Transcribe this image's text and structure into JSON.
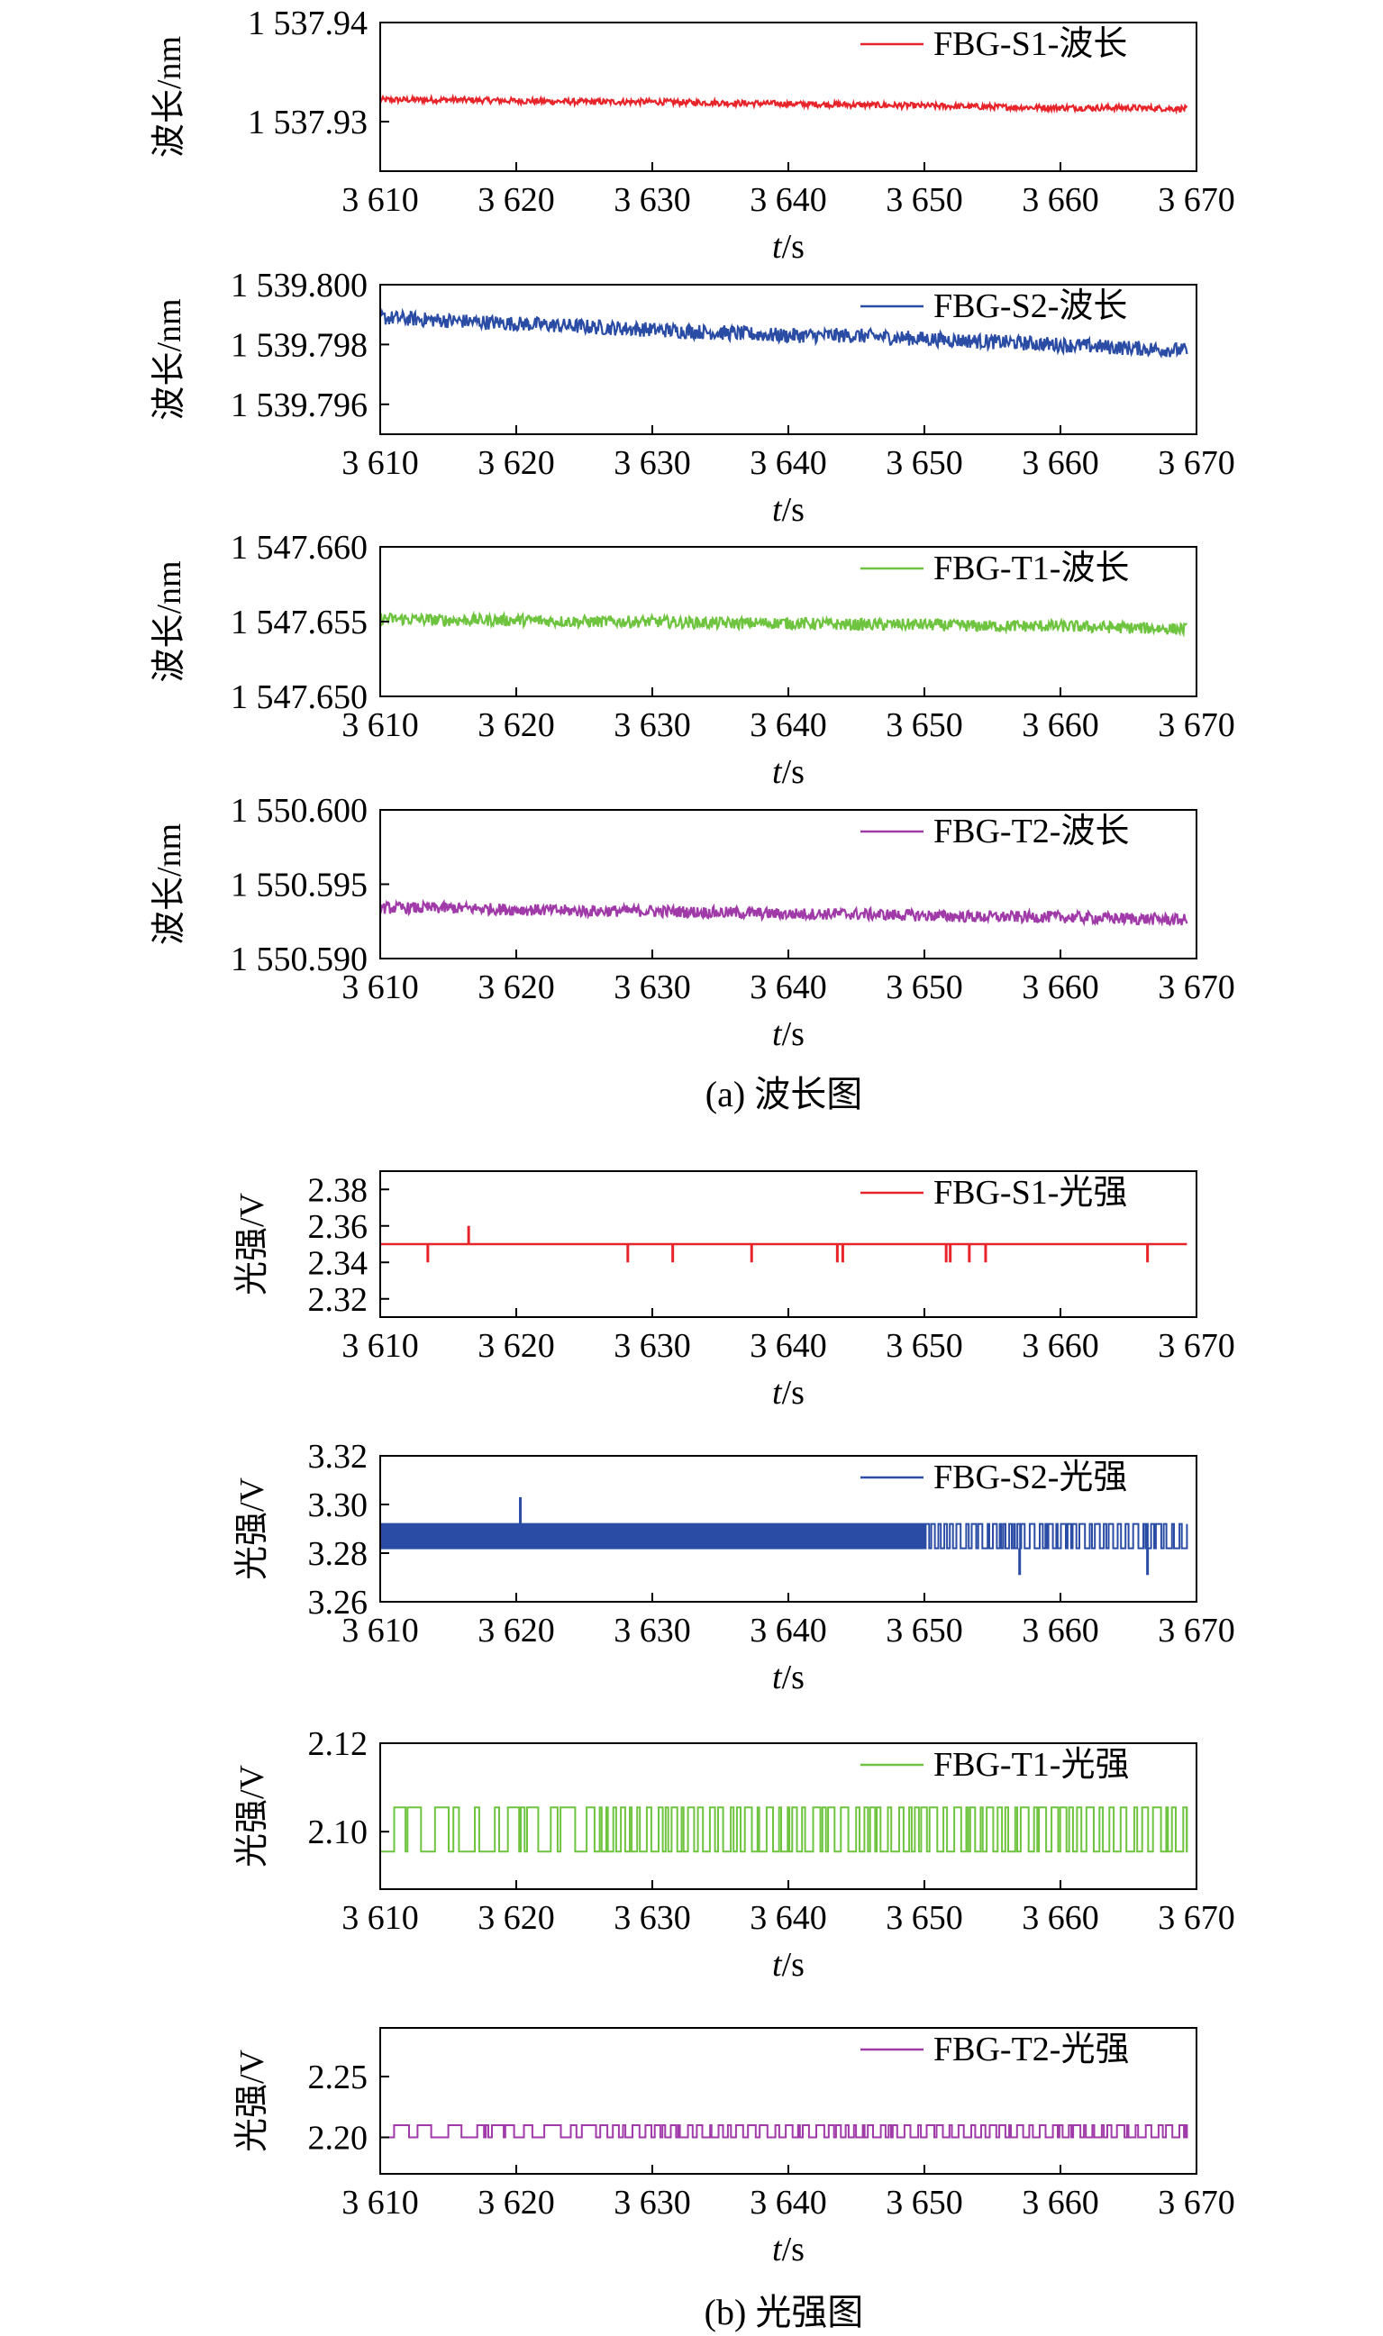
{
  "figure": {
    "caption_a": "(a) 波长图",
    "caption_b": "(b) 光强图"
  },
  "chart_data": [
    {
      "type": "line",
      "title": "",
      "xlabel_italic": "t",
      "xlabel_unit": "/s",
      "ylabel": "波长/nm",
      "xlim": [
        3610,
        3670
      ],
      "ylim": [
        1537.925,
        1537.94
      ],
      "x_ticks": [
        3610,
        3620,
        3630,
        3640,
        3650,
        3660,
        3670
      ],
      "x_tick_labels": [
        "3 610",
        "3 620",
        "3 630",
        "3 640",
        "3 650",
        "3 660",
        "3 670"
      ],
      "y_ticks": [
        1537.93,
        1537.94
      ],
      "y_tick_labels": [
        "1 537.93",
        "1 537.94"
      ],
      "legend": "top-right",
      "grid": false,
      "color": "#e8242b",
      "series": [
        {
          "name": "FBG-S1-波长",
          "x_range": [
            3610,
            3669.3
          ],
          "y": [
            1537.9322,
            1537.9322,
            1537.9321,
            1537.932,
            1537.932,
            1537.9319,
            1537.9318,
            1537.9317,
            1537.9316,
            1537.9315,
            1537.9314,
            1537.9314,
            1537.9313
          ],
          "noise": 0.0003
        }
      ]
    },
    {
      "type": "line",
      "title": "",
      "xlabel_italic": "t",
      "xlabel_unit": "/s",
      "ylabel": "波长/nm",
      "xlim": [
        3610,
        3670
      ],
      "ylim": [
        1539.795,
        1539.8
      ],
      "x_ticks": [
        3610,
        3620,
        3630,
        3640,
        3650,
        3660,
        3670
      ],
      "x_tick_labels": [
        "3 610",
        "3 620",
        "3 630",
        "3 640",
        "3 650",
        "3 660",
        "3 670"
      ],
      "y_ticks": [
        1539.796,
        1539.798,
        1539.8
      ],
      "y_tick_labels": [
        "1 539.796",
        "1 539.798",
        "1 539.800"
      ],
      "legend": "top-right",
      "grid": false,
      "color": "#2b4ca5",
      "series": [
        {
          "name": "FBG-S2-波长",
          "x_range": [
            3610,
            3669.3
          ],
          "y": [
            1539.7989,
            1539.7988,
            1539.7987,
            1539.7986,
            1539.7985,
            1539.7984,
            1539.7983,
            1539.7983,
            1539.7982,
            1539.7981,
            1539.798,
            1539.7979,
            1539.7978
          ],
          "noise": 0.00025
        }
      ]
    },
    {
      "type": "line",
      "title": "",
      "xlabel_italic": "t",
      "xlabel_unit": "/s",
      "ylabel": "波长/nm",
      "xlim": [
        3610,
        3670
      ],
      "ylim": [
        1547.65,
        1547.66
      ],
      "x_ticks": [
        3610,
        3620,
        3630,
        3640,
        3650,
        3660,
        3670
      ],
      "x_tick_labels": [
        "3 610",
        "3 620",
        "3 630",
        "3 640",
        "3 650",
        "3 660",
        "3 670"
      ],
      "y_ticks": [
        1547.65,
        1547.655,
        1547.66
      ],
      "y_tick_labels": [
        "1 547.650",
        "1 547.655",
        "1 547.660"
      ],
      "legend": "top-right",
      "grid": false,
      "color": "#6ec43f",
      "series": [
        {
          "name": "FBG-T1-波长",
          "x_range": [
            3610,
            3669.3
          ],
          "y": [
            1547.6552,
            1547.6551,
            1547.6551,
            1547.655,
            1547.655,
            1547.6549,
            1547.6549,
            1547.6548,
            1547.6548,
            1547.6547,
            1547.6547,
            1547.6546,
            1547.6545
          ],
          "noise": 0.0004
        }
      ]
    },
    {
      "type": "line",
      "title": "",
      "xlabel_italic": "t",
      "xlabel_unit": "/s",
      "ylabel": "波长/nm",
      "xlim": [
        3610,
        3670
      ],
      "ylim": [
        1550.59,
        1550.6
      ],
      "x_ticks": [
        3610,
        3620,
        3630,
        3640,
        3650,
        3660,
        3670
      ],
      "x_tick_labels": [
        "3 610",
        "3 620",
        "3 630",
        "3 640",
        "3 650",
        "3 660",
        "3 670"
      ],
      "y_ticks": [
        1550.59,
        1550.595,
        1550.6
      ],
      "y_tick_labels": [
        "1 550.590",
        "1 550.595",
        "1 550.600"
      ],
      "legend": "top-right",
      "grid": false,
      "color": "#a03aa8",
      "series": [
        {
          "name": "FBG-T2-波长",
          "x_range": [
            3610,
            3669.3
          ],
          "y": [
            1550.5934,
            1550.5934,
            1550.5933,
            1550.5932,
            1550.5932,
            1550.5931,
            1550.593,
            1550.593,
            1550.5929,
            1550.5928,
            1550.5928,
            1550.5927,
            1550.5926
          ],
          "noise": 0.0004
        }
      ]
    },
    {
      "type": "line",
      "title": "",
      "xlabel_italic": "t",
      "xlabel_unit": "/s",
      "ylabel": "光强/V",
      "xlim": [
        3610,
        3670
      ],
      "ylim": [
        2.31,
        2.39
      ],
      "x_ticks": [
        3610,
        3620,
        3630,
        3640,
        3650,
        3660,
        3670
      ],
      "x_tick_labels": [
        "3 610",
        "3 620",
        "3 630",
        "3 640",
        "3 650",
        "3 660",
        "3 670"
      ],
      "y_ticks": [
        2.32,
        2.34,
        2.36,
        2.38
      ],
      "y_tick_labels": [
        "2.32",
        "2.34",
        "2.36",
        "2.38"
      ],
      "legend": "top-right",
      "grid": false,
      "color": "#e8242b",
      "series": [
        {
          "name": "FBG-S1-光强",
          "x_range": [
            3610,
            3669.3
          ],
          "baseline": 2.35,
          "spikes": [
            [
              3613.5,
              2.34
            ],
            [
              3616.5,
              2.36
            ],
            [
              3628.2,
              2.34
            ],
            [
              3631.5,
              2.34
            ],
            [
              3637.3,
              2.34
            ],
            [
              3643.6,
              2.34
            ],
            [
              3644.0,
              2.34
            ],
            [
              3651.6,
              2.34
            ],
            [
              3651.9,
              2.34
            ],
            [
              3653.3,
              2.34
            ],
            [
              3654.5,
              2.34
            ],
            [
              3666.4,
              2.34
            ]
          ]
        }
      ]
    },
    {
      "type": "line",
      "title": "",
      "xlabel_italic": "t",
      "xlabel_unit": "/s",
      "ylabel": "光强/V",
      "xlim": [
        3610,
        3670
      ],
      "ylim": [
        3.26,
        3.32
      ],
      "x_ticks": [
        3610,
        3620,
        3630,
        3640,
        3650,
        3660,
        3670
      ],
      "x_tick_labels": [
        "3 610",
        "3 620",
        "3 630",
        "3 640",
        "3 650",
        "3 660",
        "3 670"
      ],
      "y_ticks": [
        3.26,
        3.28,
        3.3,
        3.32
      ],
      "y_tick_labels": [
        "3.26",
        "3.28",
        "3.30",
        "3.32"
      ],
      "legend": "top-right",
      "grid": false,
      "color": "#2b4ca5",
      "series": [
        {
          "name": "FBG-S2-光强",
          "x_range": [
            3610,
            3669.3
          ],
          "levels": [
            3.282,
            3.292
          ],
          "dense_until": 3650,
          "spikes": [
            [
              3620.3,
              3.303
            ],
            [
              3657.0,
              3.271
            ],
            [
              3666.4,
              3.271
            ]
          ]
        }
      ]
    },
    {
      "type": "line",
      "title": "",
      "xlabel_italic": "t",
      "xlabel_unit": "/s",
      "ylabel": "光强/V",
      "xlim": [
        3610,
        3670
      ],
      "ylim": [
        2.087,
        2.12
      ],
      "x_ticks": [
        3610,
        3620,
        3630,
        3640,
        3650,
        3660,
        3670
      ],
      "x_tick_labels": [
        "3 610",
        "3 620",
        "3 630",
        "3 640",
        "3 650",
        "3 660",
        "3 670"
      ],
      "y_ticks": [
        2.1,
        2.12
      ],
      "y_tick_labels": [
        "2.10",
        "2.12"
      ],
      "legend": "top-right",
      "grid": false,
      "color": "#6ec43f",
      "series": [
        {
          "name": "FBG-T1-光强",
          "x_range": [
            3610,
            3669.3
          ],
          "levels": [
            2.0955,
            2.1055
          ]
        }
      ]
    },
    {
      "type": "line",
      "title": "",
      "xlabel_italic": "t",
      "xlabel_unit": "/s",
      "ylabel": "光强/V",
      "xlim": [
        3610,
        3670
      ],
      "ylim": [
        2.17,
        2.29
      ],
      "x_ticks": [
        3610,
        3620,
        3630,
        3640,
        3650,
        3660,
        3670
      ],
      "x_tick_labels": [
        "3 610",
        "3 620",
        "3 630",
        "3 640",
        "3 650",
        "3 660",
        "3 670"
      ],
      "y_ticks": [
        2.2,
        2.25
      ],
      "y_tick_labels": [
        "2.20",
        "2.25"
      ],
      "legend": "top-right",
      "grid": false,
      "color": "#a03aa8",
      "series": [
        {
          "name": "FBG-T2-光强",
          "x_range": [
            3610,
            3669.3
          ],
          "levels": [
            2.2,
            2.21
          ]
        }
      ]
    }
  ]
}
